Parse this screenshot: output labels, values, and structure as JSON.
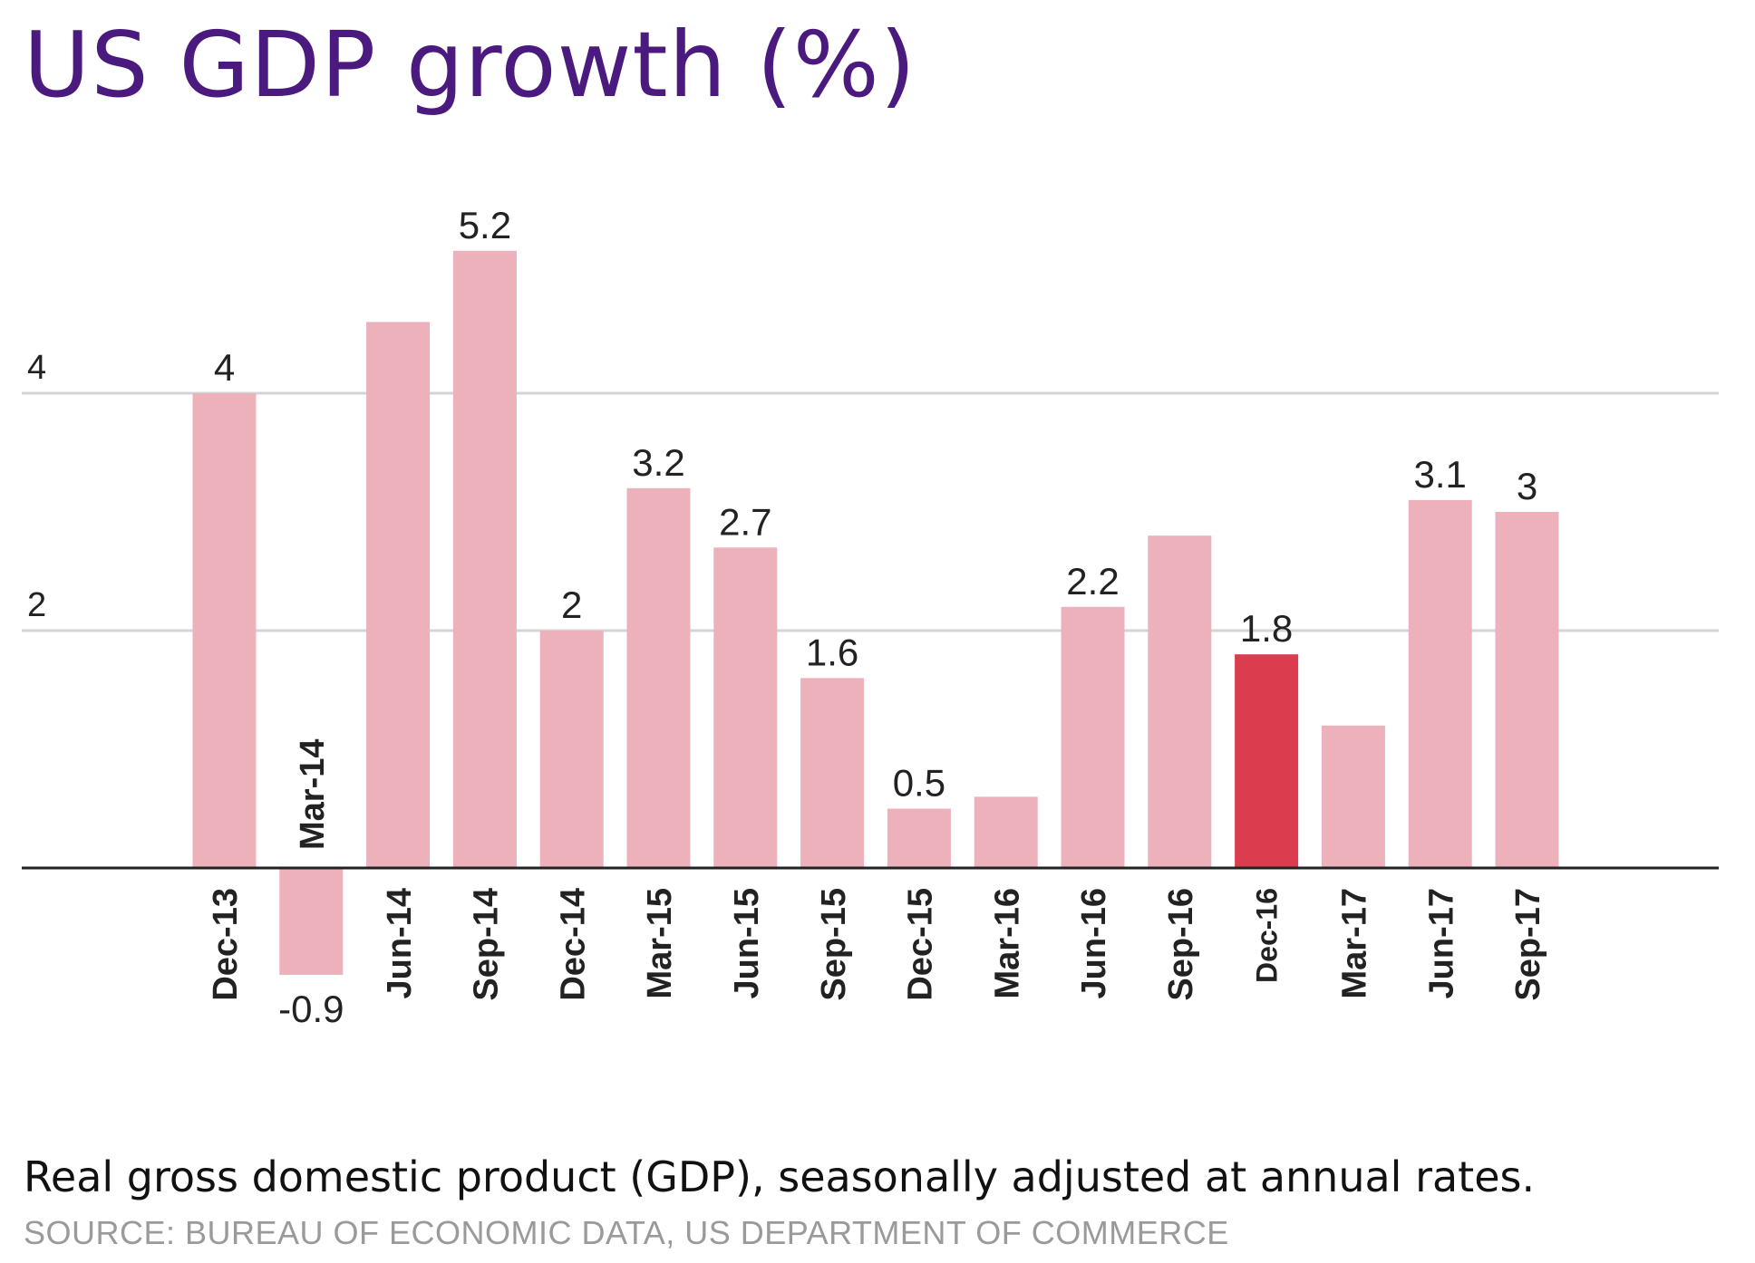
{
  "chart_data": {
    "type": "bar",
    "title": "US GDP growth (%)",
    "subtitle": "Real gross domestic product (GDP), seasonally adjusted at annual rates.",
    "source": "SOURCE: BUREAU OF ECONOMIC DATA, US DEPARTMENT OF COMMERCE",
    "categories": [
      "Dec-13",
      "Mar-14",
      "Jun-14",
      "Sep-14",
      "Dec-14",
      "Mar-15",
      "Jun-15",
      "Sep-15",
      "Dec-15",
      "Mar-16",
      "Jun-16",
      "Sep-16",
      "Dec-16",
      "Mar-17",
      "Jun-17",
      "Sep-17"
    ],
    "values": [
      4,
      -0.9,
      4.6,
      5.2,
      2,
      3.2,
      2.7,
      1.6,
      0.5,
      0.6,
      2.2,
      2.8,
      1.8,
      1.2,
      3.1,
      3
    ],
    "data_labels": [
      "4",
      "-0.9",
      "",
      "5.2",
      "2",
      "3.2",
      "2.7",
      "1.6",
      "0.5",
      "",
      "2.2",
      "",
      "1.8",
      "",
      "3.1",
      "3"
    ],
    "highlight_category": "Dec-16",
    "y_ticks": [
      2,
      4
    ],
    "y_tick_labels": [
      "2",
      "4"
    ],
    "ylim": [
      -0.9,
      5.5
    ],
    "gridlines": true,
    "xlabel": "",
    "ylabel": "",
    "colors": {
      "bar": "#edb1bb",
      "highlight": "#db3c4e",
      "title": "#4b1a7f",
      "grid": "#d4d4d4",
      "axis": "#222222",
      "label": "#222222"
    }
  }
}
